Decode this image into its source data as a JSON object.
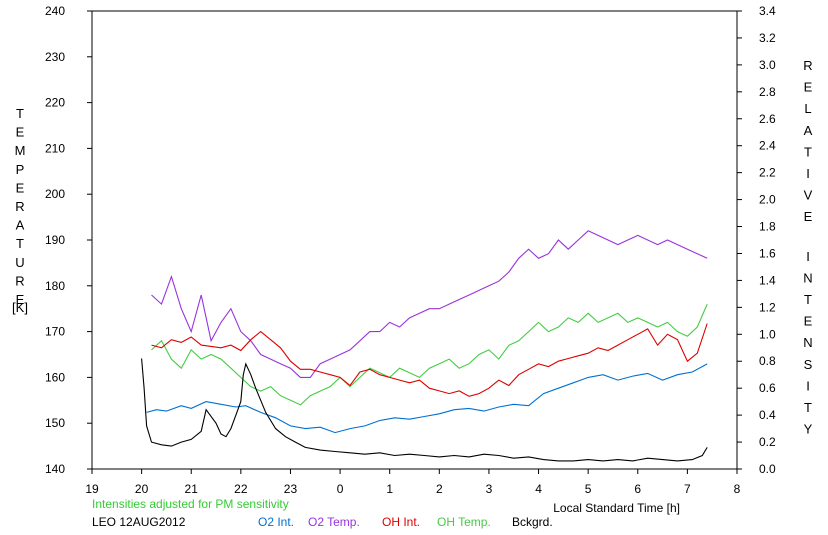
{
  "chart_data": {
    "type": "line",
    "left_axis_title": "TEMPERATURE",
    "left_axis_unit": "[K]",
    "right_axis_title": "RELATIVE INTENSITY",
    "x_label": "Local Standard Time [h]",
    "x_ticks": [
      "19",
      "20",
      "21",
      "22",
      "23",
      "0",
      "1",
      "2",
      "3",
      "4",
      "5",
      "6",
      "7",
      "8"
    ],
    "x_range": [
      19,
      32
    ],
    "y_left_range": [
      140,
      240
    ],
    "y_left_ticks": [
      "140",
      "150",
      "160",
      "170",
      "180",
      "190",
      "200",
      "210",
      "220",
      "230",
      "240"
    ],
    "y_right_range": [
      0.0,
      3.4
    ],
    "y_right_ticks": [
      "0.0",
      "0.2",
      "0.4",
      "0.6",
      "0.8",
      "1.0",
      "1.2",
      "1.4",
      "1.6",
      "1.8",
      "2.0",
      "2.2",
      "2.4",
      "2.6",
      "2.8",
      "3.0",
      "3.2",
      "3.4"
    ],
    "note": "Intensities adjusted for PM sensitivity",
    "site_date": "LEO 12AUG2012",
    "series": [
      {
        "name": "O2 Int.",
        "axis": "right",
        "color": "#0070d0",
        "x": [
          20.1,
          20.3,
          20.5,
          20.8,
          21.0,
          21.3,
          21.6,
          21.9,
          22.1,
          22.4,
          22.7,
          23.0,
          23.3,
          23.6,
          23.9,
          24.2,
          24.5,
          24.8,
          25.1,
          25.4,
          25.7,
          26.0,
          26.3,
          26.6,
          26.9,
          27.2,
          27.5,
          27.8,
          28.1,
          28.4,
          28.7,
          29.0,
          29.3,
          29.6,
          29.9,
          30.2,
          30.5,
          30.8,
          31.1,
          31.4
        ],
        "y": [
          0.42,
          0.44,
          0.43,
          0.47,
          0.45,
          0.5,
          0.48,
          0.46,
          0.47,
          0.42,
          0.38,
          0.32,
          0.3,
          0.31,
          0.27,
          0.3,
          0.32,
          0.36,
          0.38,
          0.37,
          0.39,
          0.41,
          0.44,
          0.45,
          0.43,
          0.46,
          0.48,
          0.47,
          0.56,
          0.6,
          0.64,
          0.68,
          0.7,
          0.66,
          0.69,
          0.71,
          0.66,
          0.7,
          0.72,
          0.78
        ]
      },
      {
        "name": "O2 Temp.",
        "axis": "left",
        "color": "#9933dd",
        "x": [
          20.2,
          20.4,
          20.6,
          20.8,
          21.0,
          21.2,
          21.4,
          21.6,
          21.8,
          22.0,
          22.2,
          22.4,
          22.6,
          22.8,
          23.0,
          23.2,
          23.4,
          23.6,
          23.8,
          24.0,
          24.2,
          24.4,
          24.6,
          24.8,
          25.0,
          25.2,
          25.4,
          25.6,
          25.8,
          26.0,
          26.2,
          26.4,
          26.6,
          26.8,
          27.0,
          27.2,
          27.4,
          27.6,
          27.8,
          28.0,
          28.2,
          28.4,
          28.6,
          28.8,
          29.0,
          29.2,
          29.4,
          29.6,
          29.8,
          30.0,
          30.2,
          30.4,
          30.6,
          30.8,
          31.0,
          31.2,
          31.4
        ],
        "y": [
          178,
          176,
          182,
          175,
          170,
          178,
          168,
          172,
          175,
          170,
          168,
          165,
          164,
          163,
          162,
          160,
          160,
          163,
          164,
          165,
          166,
          168,
          170,
          170,
          172,
          171,
          173,
          174,
          175,
          175,
          176,
          177,
          178,
          179,
          180,
          181,
          183,
          186,
          188,
          186,
          187,
          190,
          188,
          190,
          192,
          191,
          190,
          189,
          190,
          191,
          190,
          189,
          190,
          189,
          188,
          187,
          186
        ]
      },
      {
        "name": "OH Int.",
        "axis": "right",
        "color": "#dd0000",
        "x": [
          20.2,
          20.4,
          20.6,
          20.8,
          21.0,
          21.2,
          21.4,
          21.6,
          21.8,
          22.0,
          22.2,
          22.4,
          22.6,
          22.8,
          23.0,
          23.2,
          23.4,
          23.6,
          23.8,
          24.0,
          24.2,
          24.4,
          24.6,
          24.8,
          25.0,
          25.2,
          25.4,
          25.6,
          25.8,
          26.0,
          26.2,
          26.4,
          26.6,
          26.8,
          27.0,
          27.2,
          27.4,
          27.6,
          27.8,
          28.0,
          28.2,
          28.4,
          28.6,
          28.8,
          29.0,
          29.2,
          29.4,
          29.6,
          29.8,
          30.0,
          30.2,
          30.4,
          30.6,
          30.8,
          31.0,
          31.2,
          31.4
        ],
        "y": [
          0.92,
          0.9,
          0.96,
          0.94,
          0.98,
          0.92,
          0.91,
          0.9,
          0.92,
          0.88,
          0.96,
          1.02,
          0.96,
          0.9,
          0.8,
          0.74,
          0.74,
          0.72,
          0.7,
          0.68,
          0.62,
          0.72,
          0.74,
          0.7,
          0.68,
          0.66,
          0.64,
          0.66,
          0.6,
          0.58,
          0.56,
          0.58,
          0.54,
          0.56,
          0.6,
          0.66,
          0.62,
          0.7,
          0.74,
          0.78,
          0.76,
          0.8,
          0.82,
          0.84,
          0.86,
          0.9,
          0.88,
          0.92,
          0.96,
          1.0,
          1.04,
          0.92,
          1.0,
          0.96,
          0.8,
          0.86,
          1.08
        ]
      },
      {
        "name": "OH Temp.",
        "axis": "left",
        "color": "#44cc44",
        "x": [
          20.2,
          20.4,
          20.6,
          20.8,
          21.0,
          21.2,
          21.4,
          21.6,
          21.8,
          22.0,
          22.2,
          22.4,
          22.6,
          22.8,
          23.0,
          23.2,
          23.4,
          23.6,
          23.8,
          24.0,
          24.2,
          24.4,
          24.6,
          24.8,
          25.0,
          25.2,
          25.4,
          25.6,
          25.8,
          26.0,
          26.2,
          26.4,
          26.6,
          26.8,
          27.0,
          27.2,
          27.4,
          27.6,
          27.8,
          28.0,
          28.2,
          28.4,
          28.6,
          28.8,
          29.0,
          29.2,
          29.4,
          29.6,
          29.8,
          30.0,
          30.2,
          30.4,
          30.6,
          30.8,
          31.0,
          31.2,
          31.4
        ],
        "y": [
          166,
          168,
          164,
          162,
          166,
          164,
          165,
          164,
          162,
          160,
          158,
          157,
          158,
          156,
          155,
          154,
          156,
          157,
          158,
          160,
          158,
          160,
          162,
          161,
          160,
          162,
          161,
          160,
          162,
          163,
          164,
          162,
          163,
          165,
          166,
          164,
          167,
          168,
          170,
          172,
          170,
          171,
          173,
          172,
          174,
          172,
          173,
          174,
          172,
          173,
          172,
          171,
          172,
          170,
          169,
          171,
          176
        ]
      },
      {
        "name": "Bckgrd.",
        "axis": "right",
        "color": "#000000",
        "x": [
          20.0,
          20.05,
          20.1,
          20.2,
          20.4,
          20.6,
          20.8,
          21.0,
          21.2,
          21.3,
          21.5,
          21.6,
          21.7,
          21.8,
          21.9,
          22.0,
          22.05,
          22.1,
          22.2,
          22.3,
          22.5,
          22.7,
          22.9,
          23.1,
          23.3,
          23.6,
          23.9,
          24.2,
          24.5,
          24.8,
          25.1,
          25.4,
          25.7,
          26.0,
          26.3,
          26.6,
          26.9,
          27.2,
          27.5,
          27.8,
          28.1,
          28.4,
          28.7,
          29.0,
          29.3,
          29.6,
          29.9,
          30.2,
          30.5,
          30.8,
          31.1,
          31.3,
          31.4
        ],
        "y": [
          0.82,
          0.6,
          0.32,
          0.2,
          0.18,
          0.17,
          0.2,
          0.22,
          0.28,
          0.44,
          0.34,
          0.26,
          0.24,
          0.3,
          0.4,
          0.5,
          0.7,
          0.78,
          0.7,
          0.6,
          0.42,
          0.3,
          0.24,
          0.2,
          0.16,
          0.14,
          0.13,
          0.12,
          0.11,
          0.12,
          0.1,
          0.11,
          0.1,
          0.09,
          0.1,
          0.09,
          0.11,
          0.1,
          0.08,
          0.09,
          0.07,
          0.06,
          0.06,
          0.07,
          0.06,
          0.07,
          0.06,
          0.08,
          0.07,
          0.06,
          0.07,
          0.1,
          0.16
        ]
      }
    ]
  }
}
